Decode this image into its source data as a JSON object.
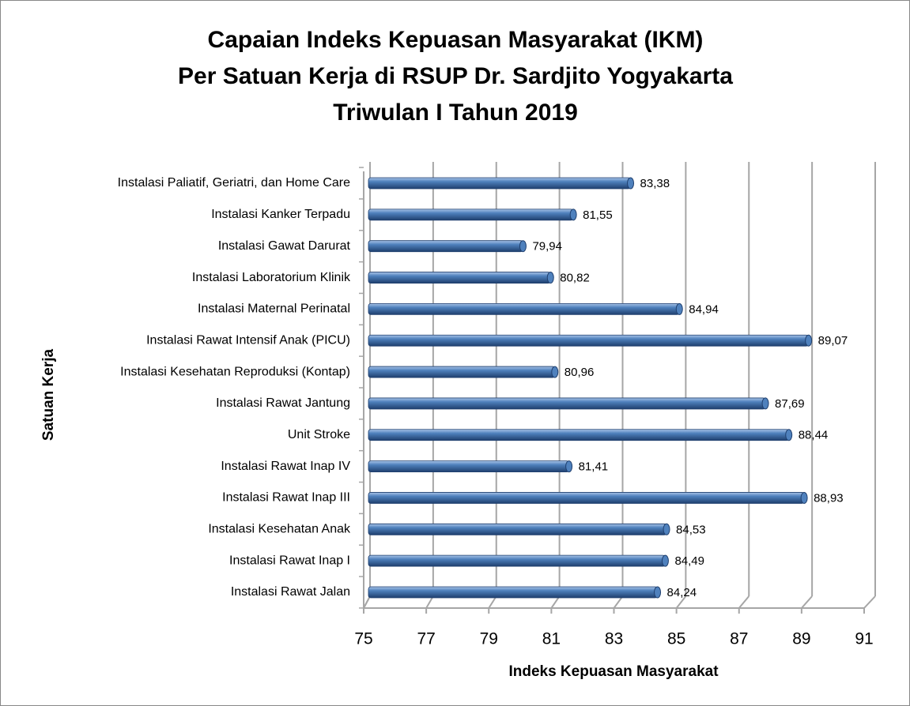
{
  "chart_data": {
    "type": "bar",
    "title": [
      "Capaian Indeks Kepuasan Masyarakat (IKM)",
      "Per Satuan Kerja di RSUP Dr. Sardjito Yogyakarta",
      "Triwulan I Tahun 2019"
    ],
    "x_label": "Indeks Kepuasan Masyarakat",
    "y_label": "Satuan Kerja",
    "categories": [
      "Instalasi Paliatif, Geriatri, dan Home Care",
      "Instalasi Kanker Terpadu",
      "Instalasi Gawat Darurat",
      "Instalasi Laboratorium Klinik",
      "Instalasi Maternal Perinatal",
      "Instalasi Rawat Intensif Anak (PICU)",
      "Instalasi Kesehatan Reproduksi (Kontap)",
      "Instalasi Rawat Jantung",
      "Unit Stroke",
      "Instalasi Rawat Inap IV",
      "Instalasi Rawat Inap III",
      "Instalasi Kesehatan Anak",
      "Instalasi Rawat Inap I",
      "Instalasi Rawat Jalan"
    ],
    "values": [
      83.38,
      81.55,
      79.94,
      80.82,
      84.94,
      89.07,
      80.96,
      87.69,
      88.44,
      81.41,
      88.93,
      84.53,
      84.49,
      84.24
    ],
    "value_labels": [
      "83,38",
      "81,55",
      "79,94",
      "80,82",
      "84,94",
      "89,07",
      "80,96",
      "87,69",
      "88,44",
      "81,41",
      "88,93",
      "84,53",
      "84,49",
      "84,24"
    ],
    "color": "#4f81bd",
    "xlim": [
      75,
      91
    ],
    "xticks": [
      75,
      77,
      79,
      81,
      83,
      85,
      87,
      89,
      91
    ],
    "grid": true
  }
}
